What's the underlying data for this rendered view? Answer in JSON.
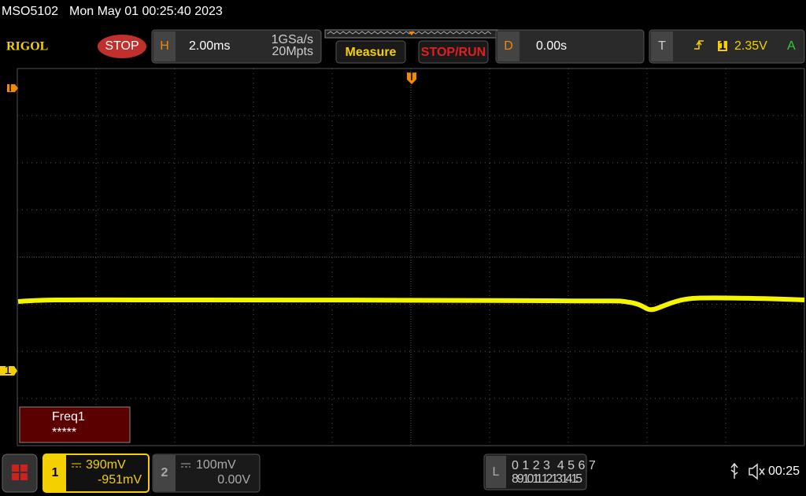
{
  "status_bar": {
    "model": "MSO5102",
    "datetime": "Mon May 01 00:25:40 2023"
  },
  "toolbar": {
    "logo": "RIGOL",
    "run_state": "STOP",
    "horizontal": {
      "label": "H",
      "timebase": "2.00ms",
      "sample_rate": "1GSa/s",
      "memory_depth": "20Mpts"
    },
    "measure_button": "Measure",
    "stop_run_button": "STOP/RUN",
    "delay": {
      "label": "D",
      "value": "0.00s"
    },
    "trigger": {
      "label": "T",
      "source": "1",
      "level": "2.35V",
      "mode": "A"
    }
  },
  "screen": {
    "trigger_level_marker": "T",
    "channel_marker": "1",
    "trigger_position_marker": "T",
    "measurement": {
      "name": "Freq1",
      "value": "*****"
    }
  },
  "bottom_bar": {
    "channel1": {
      "number": "1",
      "scale": "390mV",
      "offset": "-951mV"
    },
    "channel2": {
      "number": "2",
      "scale": "100mV",
      "offset": "0.00V"
    },
    "logic": {
      "label": "L",
      "row1": "0 1 2 3  4 5 6 7",
      "row2": "8 9 10 11 12 13 14 15"
    },
    "clock": "00:25"
  }
}
